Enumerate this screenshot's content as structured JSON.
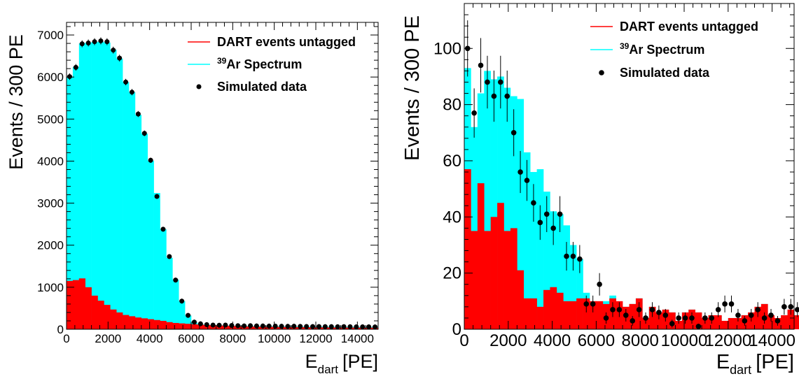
{
  "chart_data": [
    {
      "type": "bar",
      "xlabel": "E",
      "xlabel_sub": "dart",
      "xlabel_unit": "[PE]",
      "ylabel": "Events / 300 PE",
      "xlim": [
        0,
        15000
      ],
      "ylim": [
        0,
        7300
      ],
      "bin_width": 300,
      "x_ticks": [
        "0",
        "2000",
        "4000",
        "6000",
        "8000",
        "10000",
        "12000",
        "14000"
      ],
      "y_ticks": [
        "0",
        "1000",
        "2000",
        "3000",
        "4000",
        "5000",
        "6000",
        "7000"
      ],
      "legend": {
        "placement": "top-right",
        "items": [
          {
            "label": "DART events untagged",
            "kind": "line",
            "color": "#ff0000"
          },
          {
            "label_sup": "39",
            "label": "Ar Spectrum",
            "kind": "line",
            "color": "#00ffff"
          },
          {
            "label": "Simulated data",
            "kind": "marker",
            "color": "#000000"
          }
        ]
      },
      "series": [
        {
          "name": "DART events untagged",
          "color": "#ff0000",
          "values": [
            1150,
            1170,
            1210,
            1000,
            800,
            680,
            580,
            470,
            400,
            340,
            310,
            280,
            260,
            240,
            220,
            200,
            170,
            150,
            140,
            130,
            120,
            110,
            100,
            95,
            90,
            85,
            80,
            75,
            70,
            68,
            65,
            63,
            60,
            58,
            56,
            55,
            53,
            52,
            50,
            48,
            47,
            46,
            45,
            44,
            43,
            42,
            42,
            41,
            40,
            40
          ]
        },
        {
          "name": "39Ar Spectrum",
          "color": "#00ffff",
          "values": [
            6000,
            6240,
            6800,
            6820,
            6830,
            6840,
            6820,
            6650,
            6440,
            5880,
            5640,
            5100,
            4650,
            4010,
            3240,
            2380,
            1700,
            1180,
            670,
            330,
            160,
            120,
            105,
            100,
            95,
            90,
            85,
            85,
            80,
            80,
            78,
            76,
            74,
            72,
            70,
            70,
            68,
            66,
            65,
            64,
            63,
            62,
            62,
            61,
            60,
            60,
            59,
            58,
            58,
            57
          ]
        },
        {
          "name": "Simulated data",
          "color": "#000000",
          "values": [
            6010,
            6230,
            6790,
            6810,
            6840,
            6860,
            6840,
            6640,
            6450,
            5880,
            5640,
            5120,
            4660,
            4020,
            3160,
            2380,
            1730,
            1170,
            670,
            330,
            170,
            130,
            110,
            100,
            95,
            100,
            90,
            85,
            80,
            85,
            80,
            78,
            76,
            75,
            72,
            70,
            72,
            68,
            66,
            64,
            65,
            63,
            62,
            60,
            62,
            61,
            58,
            59,
            58,
            57
          ]
        }
      ]
    },
    {
      "type": "bar",
      "xlabel": "E",
      "xlabel_sub": "dart",
      "xlabel_unit": "[PE]",
      "ylabel": "Events / 300 PE",
      "xlim": [
        0,
        15000
      ],
      "ylim": [
        0,
        116
      ],
      "bin_width": 300,
      "x_ticks": [
        "0",
        "2000",
        "4000",
        "6000",
        "8000",
        "10000",
        "12000",
        "14000"
      ],
      "y_ticks": [
        "0",
        "20",
        "40",
        "60",
        "80",
        "100"
      ],
      "legend": {
        "placement": "top-right",
        "items": [
          {
            "label": "DART events untagged",
            "kind": "line",
            "color": "#ff0000"
          },
          {
            "label_sup": "39",
            "label": "Ar Spectrum",
            "kind": "line",
            "color": "#00ffff"
          },
          {
            "label": "Simulated data",
            "kind": "marker",
            "color": "#000000"
          }
        ]
      },
      "series": [
        {
          "name": "DART events untagged",
          "color": "#ff0000",
          "values": [
            57,
            35,
            52,
            35,
            40,
            45,
            35,
            36,
            21,
            11,
            11,
            8,
            14,
            15,
            13,
            10,
            10,
            11,
            11,
            10,
            10,
            9,
            11,
            10,
            8,
            9,
            11,
            4,
            8,
            6,
            7,
            6,
            3,
            6,
            7,
            6,
            4,
            5,
            5,
            3,
            4,
            4,
            5,
            6,
            8,
            9,
            5,
            4,
            5,
            7,
            5,
            6,
            4,
            6,
            5,
            4,
            6,
            4,
            5,
            2,
            7
          ]
        },
        {
          "name": "39Ar Spectrum",
          "color": "#00ffff",
          "values": [
            93,
            72,
            84,
            92,
            89,
            90,
            86,
            83,
            82,
            63,
            56,
            57,
            49,
            42,
            41,
            37,
            30,
            25,
            13,
            10,
            9,
            10,
            12,
            6,
            8,
            9,
            11,
            4,
            8,
            6,
            7,
            6,
            3,
            6,
            7,
            6,
            4,
            5,
            5,
            3,
            4,
            4,
            5,
            6,
            8,
            9,
            5,
            4,
            5,
            7,
            5,
            6,
            4,
            6,
            5,
            4,
            6,
            4,
            5,
            2,
            7
          ]
        },
        {
          "name": "Simulated data",
          "color": "#000000",
          "values": [
            100,
            77,
            94,
            88,
            83,
            88,
            83,
            70,
            56,
            53,
            45,
            38,
            41,
            36,
            41,
            26,
            26,
            25,
            9,
            9,
            16,
            4,
            7,
            7,
            5,
            3,
            7,
            4,
            7,
            6,
            5,
            2,
            4,
            4,
            4,
            1,
            4,
            4,
            7,
            9,
            9,
            5,
            3,
            5,
            7,
            4,
            5,
            3,
            8,
            8,
            7,
            9,
            4,
            6,
            3,
            4,
            6,
            3,
            5,
            2,
            5
          ]
        }
      ]
    }
  ]
}
